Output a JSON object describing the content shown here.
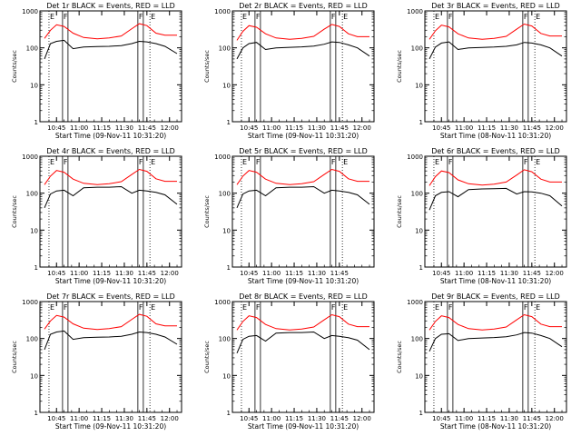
{
  "chart_data": [
    {
      "type": "line",
      "title": "Det 1r BLACK = Events, RED = LLD",
      "xlabel": "Start Time (09-Nov-11 10:31:20)",
      "ylabel": "Counts/sec",
      "ylim": [
        1,
        1000
      ],
      "yscale": "log",
      "grid": false,
      "x_tick_labels": [
        "10:45",
        "11:00",
        "11:15",
        "11:30",
        "11:45",
        "12:00"
      ],
      "y_tick_labels": [
        "1",
        "10",
        "100",
        "1000"
      ],
      "markers": [
        {
          "label": "E",
          "time": "10:40"
        },
        {
          "label": "F",
          "time": "10:49"
        },
        {
          "label": "F",
          "time": "11:39"
        },
        {
          "label": "E",
          "time": "11:47"
        }
      ],
      "x": [
        "10:37",
        "10:41",
        "10:45",
        "10:50",
        "10:56",
        "11:03",
        "11:12",
        "11:20",
        "11:28",
        "11:35",
        "11:40",
        "11:45",
        "11:51",
        "11:57",
        "12:05"
      ],
      "series": [
        {
          "name": "BLACK = Events",
          "color": "#000000",
          "values": [
            50,
            130,
            150,
            160,
            95,
            105,
            108,
            110,
            115,
            130,
            150,
            145,
            130,
            110,
            70
          ]
        },
        {
          "name": "RED = LLD",
          "color": "#ff0000",
          "values": [
            180,
            300,
            420,
            380,
            250,
            190,
            175,
            185,
            210,
            330,
            450,
            400,
            250,
            220,
            220
          ]
        }
      ]
    },
    {
      "type": "line",
      "title": "Det 2r BLACK = Events, RED = LLD",
      "xlabel": "Start Time (09-Nov-11 10:31:20)",
      "ylabel": "Counts/sec",
      "ylim": [
        1,
        1000
      ],
      "yscale": "log",
      "grid": false,
      "x_tick_labels": [
        "10:45",
        "11:00",
        "11:15",
        "11:30",
        "11:45",
        "12:00"
      ],
      "y_tick_labels": [
        "1",
        "10",
        "100",
        "1000"
      ],
      "markers": [
        {
          "label": "E",
          "time": "10:40"
        },
        {
          "label": "F",
          "time": "10:49"
        },
        {
          "label": "F",
          "time": "11:39"
        },
        {
          "label": "E",
          "time": "11:47"
        }
      ],
      "x": [
        "10:37",
        "10:41",
        "10:45",
        "10:50",
        "10:56",
        "11:03",
        "11:12",
        "11:20",
        "11:28",
        "11:35",
        "11:40",
        "11:45",
        "11:51",
        "11:57",
        "12:05"
      ],
      "series": [
        {
          "name": "BLACK = Events",
          "color": "#000000",
          "values": [
            50,
            100,
            130,
            140,
            90,
            100,
            103,
            106,
            112,
            125,
            145,
            140,
            120,
            100,
            60
          ]
        },
        {
          "name": "RED = LLD",
          "color": "#ff0000",
          "values": [
            160,
            280,
            400,
            360,
            240,
            185,
            170,
            180,
            205,
            320,
            430,
            380,
            240,
            200,
            200
          ]
        }
      ]
    },
    {
      "type": "line",
      "title": "Det 3r BLACK = Events, RED = LLD",
      "xlabel": "Start Time (08-Nov-11 10:31:20)",
      "ylabel": "Counts/sec",
      "ylim": [
        1,
        1000
      ],
      "yscale": "log",
      "grid": false,
      "x_tick_labels": [
        "10:45",
        "11:00",
        "11:15",
        "11:30",
        "11:45",
        "12:00"
      ],
      "y_tick_labels": [
        "1",
        "10",
        "100",
        "1000"
      ],
      "markers": [
        {
          "label": "E",
          "time": "10:40"
        },
        {
          "label": "F",
          "time": "10:49"
        },
        {
          "label": "F",
          "time": "11:39"
        },
        {
          "label": "E",
          "time": "11:47"
        }
      ],
      "x": [
        "10:37",
        "10:41",
        "10:45",
        "10:50",
        "10:56",
        "11:03",
        "11:12",
        "11:20",
        "11:28",
        "11:35",
        "11:40",
        "11:45",
        "11:51",
        "11:57",
        "12:05"
      ],
      "series": [
        {
          "name": "BLACK = Events",
          "color": "#000000",
          "values": [
            50,
            105,
            135,
            145,
            90,
            100,
            102,
            105,
            110,
            120,
            140,
            135,
            120,
            100,
            60
          ]
        },
        {
          "name": "RED = LLD",
          "color": "#ff0000",
          "values": [
            170,
            290,
            410,
            370,
            240,
            185,
            170,
            180,
            205,
            320,
            440,
            390,
            245,
            210,
            210
          ]
        }
      ]
    },
    {
      "type": "line",
      "title": "Det 4r BLACK = Events, RED = LLD",
      "xlabel": "Start Time (09-Nov-11 10:31:20)",
      "ylabel": "Counts/sec",
      "ylim": [
        1,
        1000
      ],
      "yscale": "log",
      "grid": false,
      "x_tick_labels": [
        "10:45",
        "11:00",
        "11:15",
        "11:30",
        "11:45",
        "12:00"
      ],
      "y_tick_labels": [
        "1",
        "10",
        "100",
        "1000"
      ],
      "markers": [
        {
          "label": "E",
          "time": "10:40"
        },
        {
          "label": "F",
          "time": "10:49"
        },
        {
          "label": "F",
          "time": "11:39"
        },
        {
          "label": "E",
          "time": "11:47"
        }
      ],
      "x": [
        "10:37",
        "10:41",
        "10:45",
        "10:50",
        "10:56",
        "11:03",
        "11:12",
        "11:20",
        "11:28",
        "11:35",
        "11:40",
        "11:45",
        "11:51",
        "11:57",
        "12:05"
      ],
      "series": [
        {
          "name": "BLACK = Events",
          "color": "#000000",
          "values": [
            40,
            95,
            115,
            120,
            85,
            140,
            145,
            145,
            150,
            100,
            120,
            115,
            105,
            90,
            50
          ]
        },
        {
          "name": "RED = LLD",
          "color": "#ff0000",
          "values": [
            170,
            290,
            410,
            370,
            240,
            185,
            170,
            180,
            205,
            320,
            440,
            390,
            245,
            210,
            210
          ]
        }
      ]
    },
    {
      "type": "line",
      "title": "Det 5r BLACK = Events, RED = LLD",
      "xlabel": "Start Time (09-Nov-11 10:31:20)",
      "ylabel": "Counts/sec",
      "ylim": [
        1,
        1000
      ],
      "yscale": "log",
      "grid": false,
      "x_tick_labels": [
        "10:45",
        "11:00",
        "11:15",
        "11:30",
        "11:45"
      ],
      "y_tick_labels": [
        "1",
        "10",
        "100",
        "1000"
      ],
      "markers": [
        {
          "label": "E",
          "time": "10:40"
        },
        {
          "label": "F",
          "time": "10:49"
        },
        {
          "label": "F",
          "time": "11:39"
        },
        {
          "label": "E",
          "time": "11:47"
        }
      ],
      "x": [
        "10:37",
        "10:41",
        "10:45",
        "10:50",
        "10:56",
        "11:03",
        "11:12",
        "11:20",
        "11:28",
        "11:35",
        "11:40",
        "11:45",
        "11:51",
        "11:57",
        "12:05"
      ],
      "series": [
        {
          "name": "BLACK = Events",
          "color": "#000000",
          "values": [
            40,
            95,
            115,
            120,
            85,
            140,
            145,
            145,
            150,
            100,
            120,
            115,
            105,
            90,
            50
          ]
        },
        {
          "name": "RED = LLD",
          "color": "#ff0000",
          "values": [
            170,
            290,
            410,
            370,
            240,
            185,
            170,
            180,
            205,
            320,
            440,
            390,
            245,
            210,
            210
          ]
        }
      ]
    },
    {
      "type": "line",
      "title": "Det 6r BLACK = Events, RED = LLD",
      "xlabel": "Start Time (08-Nov-11 10:31:20)",
      "ylabel": "Counts/sec",
      "ylim": [
        1,
        1000
      ],
      "yscale": "log",
      "grid": false,
      "x_tick_labels": [
        "10:45",
        "11:00",
        "11:15",
        "11:30",
        "11:45",
        "12:00"
      ],
      "y_tick_labels": [
        "1",
        "10",
        "100",
        "1000"
      ],
      "markers": [
        {
          "label": "E",
          "time": "10:40"
        },
        {
          "label": "F",
          "time": "10:49"
        },
        {
          "label": "F",
          "time": "11:39"
        },
        {
          "label": "E",
          "time": "11:47"
        }
      ],
      "x": [
        "10:37",
        "10:41",
        "10:45",
        "10:50",
        "10:56",
        "11:03",
        "11:12",
        "11:20",
        "11:28",
        "11:35",
        "11:40",
        "11:45",
        "11:51",
        "11:57",
        "12:05"
      ],
      "series": [
        {
          "name": "BLACK = Events",
          "color": "#000000",
          "values": [
            35,
            85,
            105,
            110,
            80,
            125,
            130,
            132,
            135,
            95,
            110,
            108,
            100,
            85,
            45
          ]
        },
        {
          "name": "RED = LLD",
          "color": "#ff0000",
          "values": [
            160,
            280,
            400,
            360,
            230,
            180,
            165,
            175,
            200,
            310,
            430,
            380,
            240,
            200,
            200
          ]
        }
      ]
    },
    {
      "type": "line",
      "title": "Det 7r BLACK = Events, RED = LLD",
      "xlabel": "Start Time (09-Nov-11 10:31:20)",
      "ylabel": "Counts/sec",
      "ylim": [
        1,
        1000
      ],
      "yscale": "log",
      "grid": false,
      "x_tick_labels": [
        "10:45",
        "11:00",
        "11:15",
        "11:30",
        "11:45",
        "12:00"
      ],
      "y_tick_labels": [
        "1",
        "10",
        "100",
        "1000"
      ],
      "markers": [
        {
          "label": "E",
          "time": "10:40"
        },
        {
          "label": "F",
          "time": "10:49"
        },
        {
          "label": "F",
          "time": "11:39"
        },
        {
          "label": "E",
          "time": "11:47"
        }
      ],
      "x": [
        "10:37",
        "10:41",
        "10:45",
        "10:50",
        "10:56",
        "11:03",
        "11:12",
        "11:20",
        "11:28",
        "11:35",
        "11:40",
        "11:45",
        "11:51",
        "11:57",
        "12:05"
      ],
      "series": [
        {
          "name": "BLACK = Events",
          "color": "#000000",
          "values": [
            50,
            130,
            150,
            160,
            95,
            105,
            108,
            110,
            115,
            130,
            150,
            145,
            130,
            110,
            70
          ]
        },
        {
          "name": "RED = LLD",
          "color": "#ff0000",
          "values": [
            180,
            300,
            420,
            380,
            250,
            190,
            175,
            185,
            210,
            330,
            450,
            400,
            250,
            220,
            220
          ]
        }
      ]
    },
    {
      "type": "line",
      "title": "Det 8r BLACK = Events, RED = LLD",
      "xlabel": "Start Time (09-Nov-11 10:31:20)",
      "ylabel": "Counts/sec",
      "ylim": [
        1,
        1000
      ],
      "yscale": "log",
      "grid": false,
      "x_tick_labels": [
        "10:45",
        "11:00",
        "11:15",
        "11:30",
        "11:45",
        "12:00"
      ],
      "y_tick_labels": [
        "1",
        "10",
        "100",
        "1000"
      ],
      "markers": [
        {
          "label": "E",
          "time": "10:40"
        },
        {
          "label": "F",
          "time": "10:49"
        },
        {
          "label": "F",
          "time": "11:39"
        },
        {
          "label": "E",
          "time": "11:47"
        }
      ],
      "x": [
        "10:37",
        "10:41",
        "10:45",
        "10:50",
        "10:56",
        "11:03",
        "11:12",
        "11:20",
        "11:28",
        "11:35",
        "11:40",
        "11:45",
        "11:51",
        "11:57",
        "12:05"
      ],
      "series": [
        {
          "name": "BLACK = Events",
          "color": "#000000",
          "values": [
            40,
            95,
            115,
            120,
            85,
            140,
            145,
            145,
            150,
            100,
            120,
            115,
            105,
            90,
            50
          ]
        },
        {
          "name": "RED = LLD",
          "color": "#ff0000",
          "values": [
            170,
            290,
            410,
            370,
            240,
            185,
            170,
            180,
            205,
            320,
            440,
            390,
            245,
            210,
            210
          ]
        }
      ]
    },
    {
      "type": "line",
      "title": "Det 9r BLACK = Events, RED = LLD",
      "xlabel": "Start Time (08-Nov-11 10:31:20)",
      "ylabel": "Counts/sec",
      "ylim": [
        1,
        1000
      ],
      "yscale": "log",
      "grid": false,
      "x_tick_labels": [
        "10:45",
        "11:00",
        "11:15",
        "11:30",
        "11:45",
        "12:00"
      ],
      "y_tick_labels": [
        "1",
        "10",
        "100",
        "1000"
      ],
      "markers": [
        {
          "label": "E",
          "time": "10:40"
        },
        {
          "label": "F",
          "time": "10:49"
        },
        {
          "label": "F",
          "time": "11:39"
        },
        {
          "label": "E",
          "time": "11:47"
        }
      ],
      "x": [
        "10:37",
        "10:41",
        "10:45",
        "10:50",
        "10:56",
        "11:03",
        "11:12",
        "11:20",
        "11:28",
        "11:35",
        "11:40",
        "11:45",
        "11:51",
        "11:57",
        "12:05"
      ],
      "series": [
        {
          "name": "BLACK = Events",
          "color": "#000000",
          "values": [
            45,
            100,
            130,
            135,
            88,
            100,
            103,
            106,
            112,
            125,
            145,
            140,
            120,
            100,
            60
          ]
        },
        {
          "name": "RED = LLD",
          "color": "#ff0000",
          "values": [
            170,
            290,
            410,
            370,
            240,
            185,
            170,
            180,
            205,
            320,
            440,
            390,
            245,
            210,
            210
          ]
        }
      ]
    }
  ]
}
